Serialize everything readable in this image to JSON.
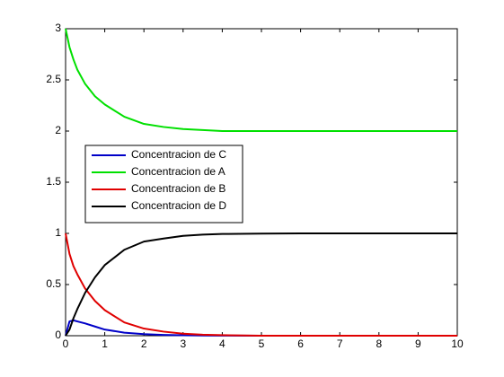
{
  "chart_data": {
    "type": "line",
    "x": [
      0,
      0.1,
      0.2,
      0.3,
      0.5,
      0.75,
      1,
      1.5,
      2,
      2.5,
      3,
      3.5,
      4,
      5,
      6,
      7,
      8,
      9,
      10
    ],
    "series": [
      {
        "name": "Concentracion de C",
        "color": "#0000c8",
        "values": [
          0,
          0.14,
          0.15,
          0.14,
          0.12,
          0.09,
          0.06,
          0.03,
          0.015,
          0.008,
          0.004,
          0.002,
          0.001,
          0,
          0,
          0,
          0,
          0,
          0
        ]
      },
      {
        "name": "Concentracion de A",
        "color": "#00e000",
        "values": [
          3,
          2.82,
          2.7,
          2.6,
          2.46,
          2.34,
          2.26,
          2.14,
          2.07,
          2.04,
          2.02,
          2.01,
          2.0,
          2,
          2,
          2,
          2,
          2,
          2
        ]
      },
      {
        "name": "Concentracion de B",
        "color": "#e00000",
        "values": [
          1,
          0.8,
          0.68,
          0.6,
          0.46,
          0.34,
          0.25,
          0.13,
          0.07,
          0.04,
          0.02,
          0.01,
          0.005,
          0,
          0,
          0,
          0,
          0,
          0
        ]
      },
      {
        "name": "Concentracion de D",
        "color": "#000000",
        "values": [
          0,
          0.06,
          0.17,
          0.26,
          0.42,
          0.57,
          0.69,
          0.84,
          0.92,
          0.95,
          0.976,
          0.988,
          0.994,
          0.998,
          1,
          1,
          1,
          1,
          1
        ]
      }
    ],
    "xlim": [
      0,
      10
    ],
    "xticks": [
      0,
      1,
      2,
      3,
      4,
      5,
      6,
      7,
      8,
      9,
      10
    ],
    "ylim": [
      0,
      3
    ],
    "yticks": [
      0,
      0.5,
      1,
      1.5,
      2,
      2.5,
      3
    ],
    "legend": "left"
  }
}
